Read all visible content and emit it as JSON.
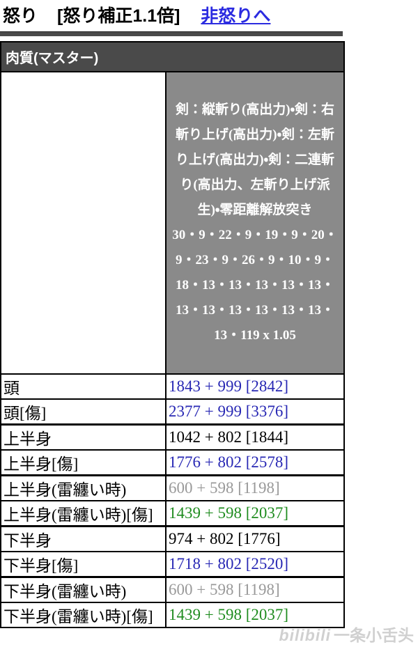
{
  "title": {
    "mode": "怒り",
    "modifier": "[怒り補正1.1倍]",
    "link": "非怒りへ"
  },
  "table": {
    "section_header": "肉質(マスター)",
    "attack_header": {
      "attack_names": "剣：縦斬り(高出力)・剣：右斬り上げ(高出力)・剣：左斬り上げ(高出力)・剣：二連斬り(高出力、左斬り上げ派生)・零距離解放突き",
      "attack_values": "30・9・22・9・19・9・20・9・23・9・26・9・10・9・18・13・13・13・13・13・13・13・13・13・13・13・13・119 x 1.05"
    },
    "rows": [
      {
        "label": "頭",
        "value": "1843 + 999 [2842]",
        "value_color": "#2828b4"
      },
      {
        "label": "頭[傷]",
        "value": "2377 + 999 [3376]",
        "value_color": "#2828b4"
      },
      {
        "label": "上半身",
        "value": "1042 + 802 [1844]",
        "value_color": "#000000"
      },
      {
        "label": "上半身[傷]",
        "value": "1776 + 802 [2578]",
        "value_color": "#2828b4"
      },
      {
        "label": "上半身(雷纏い時)",
        "value": "600 + 598 [1198]",
        "value_color": "#999999"
      },
      {
        "label": "上半身(雷纏い時)[傷]",
        "value": "1439 + 598 [2037]",
        "value_color": "#1f8c1f"
      },
      {
        "label": "下半身",
        "value": "974 + 802 [1776]",
        "value_color": "#000000"
      },
      {
        "label": "下半身[傷]",
        "value": "1718 + 802 [2520]",
        "value_color": "#2828b4"
      },
      {
        "label": "下半身(雷纏い時)",
        "value": "600 + 598 [1198]",
        "value_color": "#999999"
      },
      {
        "label": "下半身(雷纏い時)[傷]",
        "value": "1439 + 598 [2037]",
        "value_color": "#1f8c1f"
      }
    ]
  },
  "watermark": {
    "logo_text": "bilibili",
    "user_text": "一条小舌头"
  },
  "colors": {
    "border": "#000000",
    "section_header_bg": "#4a4a4a",
    "attack_cell_bg": "#8a8a8a",
    "header_text": "#ffffff",
    "link_blue": "#2b2be0",
    "hr_bar": "#4a4a4a",
    "value_blue": "#2828b4",
    "value_green": "#1f8c1f",
    "value_gray": "#999999",
    "value_black": "#000000"
  }
}
